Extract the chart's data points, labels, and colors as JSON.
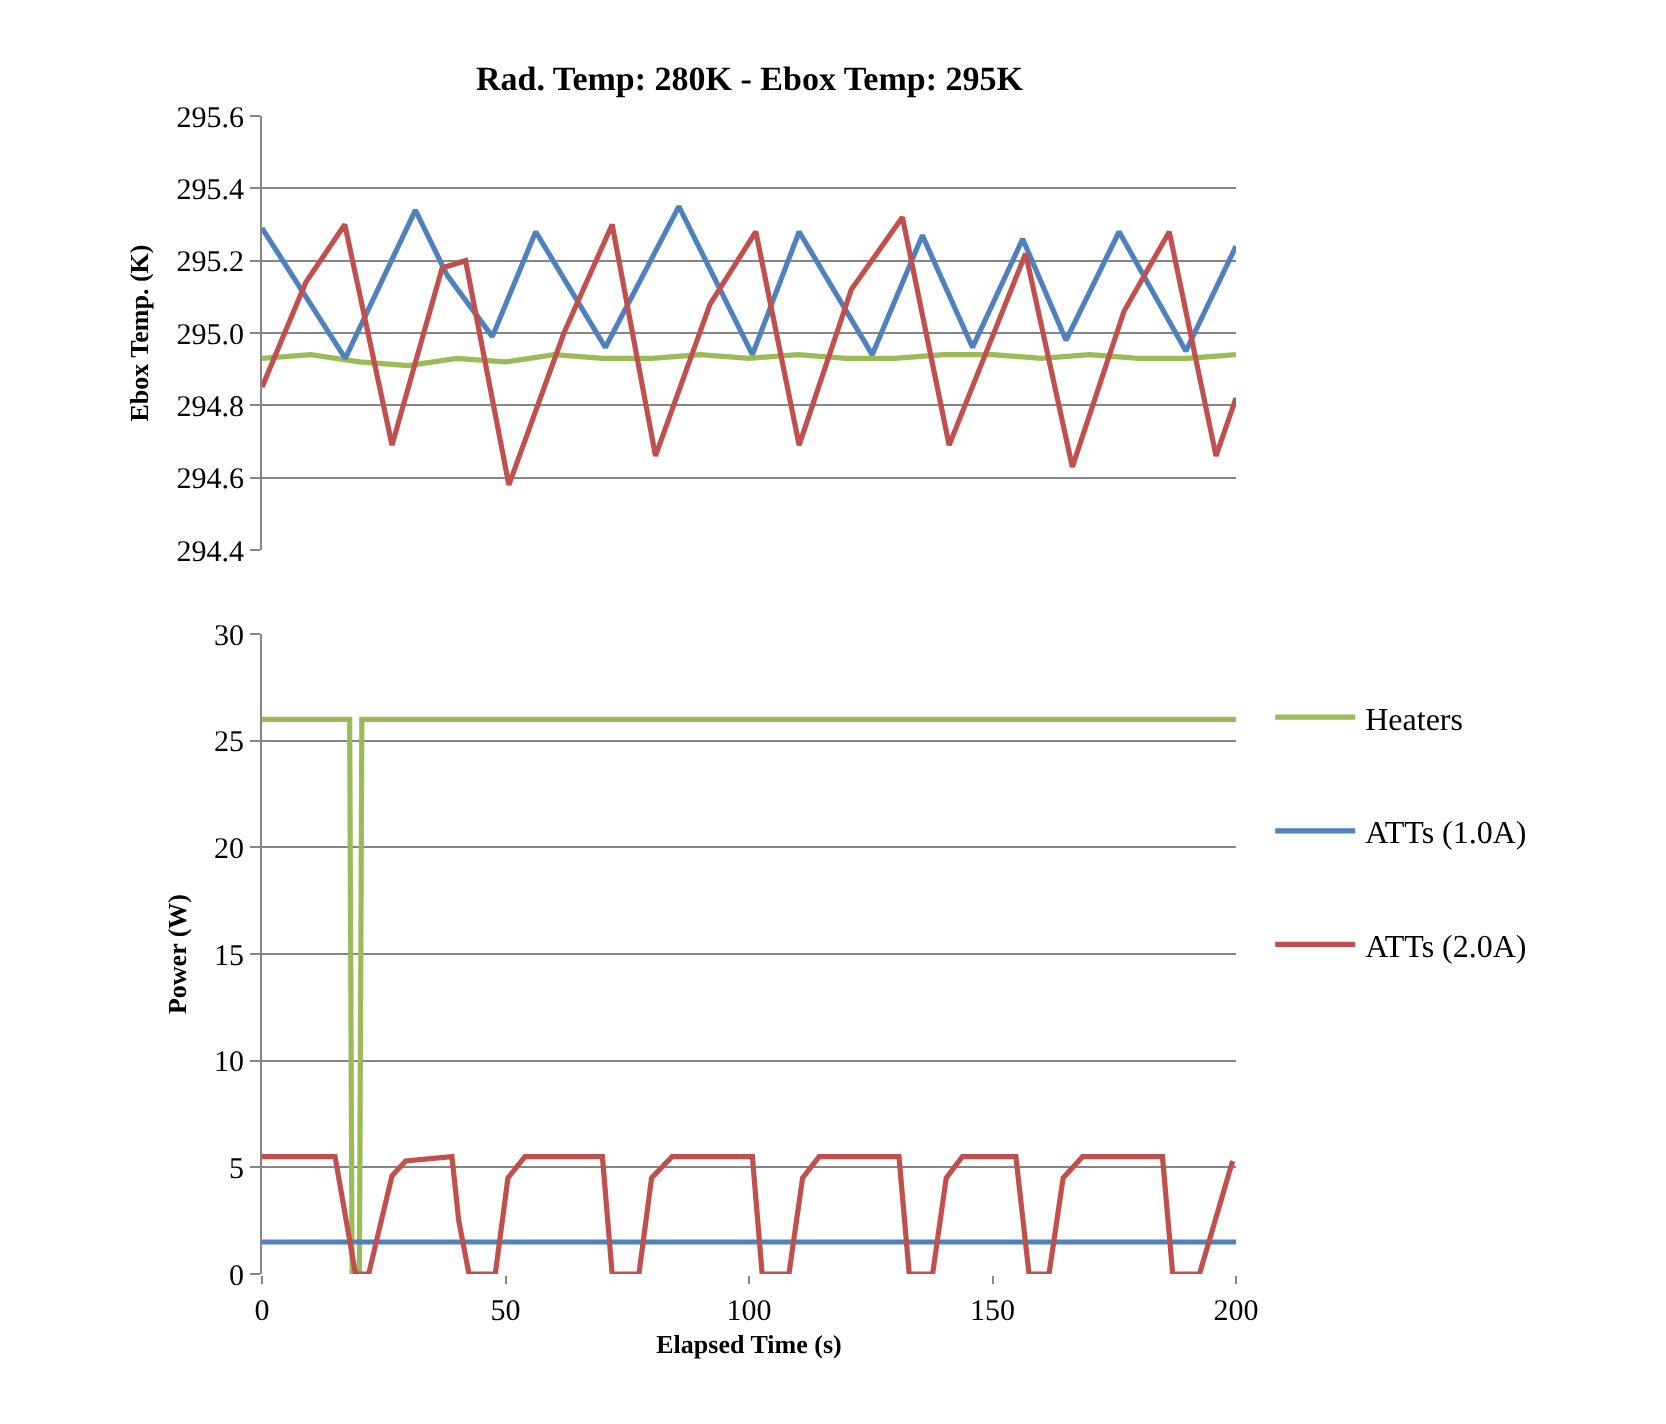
{
  "chart_data": [
    {
      "type": "line",
      "title": "Rad. Temp: 280K - Ebox Temp: 295K",
      "ylabel": "Ebox Temp. (K)",
      "xlim": [
        0,
        200
      ],
      "xticks": [
        0,
        50,
        100,
        150,
        200
      ],
      "ylim": [
        294.4,
        295.6
      ],
      "yticks": [
        {
          "value": 294.4,
          "label": "294.4"
        },
        {
          "value": 294.6,
          "label": "294.6"
        },
        {
          "value": 294.8,
          "label": "294.8"
        },
        {
          "value": 295.0,
          "label": "295.0"
        },
        {
          "value": 295.2,
          "label": "295.2"
        },
        {
          "value": 295.4,
          "label": "295.4"
        },
        {
          "value": 295.6,
          "label": "295.6"
        }
      ],
      "grid": "y",
      "tick_labels": "y",
      "marker": "none",
      "line_style": "solid",
      "series": [
        {
          "color": "#9bbb59",
          "x": [
            0,
            10,
            20,
            30,
            40,
            50,
            60,
            70,
            80,
            90,
            100,
            110,
            120,
            130,
            140,
            150,
            160,
            170,
            180,
            190,
            200
          ],
          "values": [
            294.93,
            294.94,
            294.92,
            294.91,
            294.93,
            294.92,
            294.94,
            294.93,
            294.93,
            294.94,
            294.93,
            294.94,
            294.93,
            294.93,
            294.94,
            294.94,
            294.93,
            294.94,
            294.93,
            294.93,
            294.94
          ]
        },
        {
          "color": "#4f81bd",
          "x": [
            0,
            17.1,
            31.5,
            38,
            47.3,
            56.2,
            70.5,
            85.6,
            100.7,
            110.3,
            125.3,
            135.6,
            145.9,
            156.2,
            165.1,
            176,
            189.7,
            200
          ],
          "values": [
            295.29,
            294.93,
            295.34,
            295.16,
            294.99,
            295.28,
            294.96,
            295.35,
            294.94,
            295.28,
            294.94,
            295.27,
            294.96,
            295.26,
            294.98,
            295.28,
            294.95,
            295.24
          ]
        },
        {
          "color": "#c0504d",
          "x": [
            0,
            9,
            17,
            26.7,
            37,
            41.8,
            50.7,
            62,
            71.9,
            80.8,
            92,
            101.4,
            110.3,
            121,
            131.5,
            141.1,
            156.8,
            166.4,
            177,
            186.3,
            195.9,
            200
          ],
          "values": [
            294.85,
            295.14,
            295.3,
            294.69,
            295.18,
            295.2,
            294.58,
            295.0,
            295.3,
            294.66,
            295.08,
            295.28,
            294.69,
            295.12,
            295.32,
            294.69,
            295.22,
            294.63,
            295.06,
            295.28,
            294.66,
            294.82
          ]
        }
      ]
    },
    {
      "type": "line",
      "xlabel": "Elapsed Time (s)",
      "ylabel": "Power (W)",
      "xlim": [
        0,
        200
      ],
      "xticks": [
        0,
        50,
        100,
        150,
        200
      ],
      "ylim": [
        0,
        30
      ],
      "yticks": [
        0,
        5,
        10,
        15,
        20,
        25,
        30
      ],
      "grid": "y",
      "legend": "right",
      "marker": "none",
      "line_style": "solid",
      "series": [
        {
          "name": "Heaters",
          "color": "#9bbb59",
          "x": [
            0,
            18,
            18.5,
            20,
            20.5,
            200
          ],
          "values": [
            26,
            26,
            0,
            0,
            26,
            26
          ]
        },
        {
          "name": "ATTs (1.0A)",
          "color": "#4f81bd",
          "x": [
            0,
            50,
            100,
            150,
            200
          ],
          "values": [
            1.5,
            1.5,
            1.5,
            1.5,
            1.5
          ]
        },
        {
          "name": "ATTs (2.0A)",
          "color": "#c0504d",
          "x": [
            0,
            15,
            19.2,
            21.9,
            24.5,
            26.7,
            29.5,
            39,
            40.4,
            42.5,
            47.9,
            50.5,
            54,
            69.9,
            71.9,
            77.4,
            80,
            84.2,
            100.7,
            102.7,
            108.2,
            111,
            114.4,
            130.8,
            132.9,
            137.7,
            140.5,
            143.8,
            154.8,
            157.5,
            161.6,
            164.5,
            168.5,
            184.9,
            187,
            192.5,
            199.3
          ],
          "values": [
            5.5,
            5.5,
            0,
            0,
            2.5,
            4.6,
            5.3,
            5.5,
            2.5,
            0,
            0,
            4.5,
            5.5,
            5.5,
            0,
            0,
            4.5,
            5.5,
            5.5,
            0,
            0,
            4.5,
            5.5,
            5.5,
            0,
            0,
            4.5,
            5.5,
            5.5,
            0,
            0,
            4.5,
            5.5,
            5.5,
            0,
            0,
            5.3
          ]
        }
      ]
    }
  ]
}
